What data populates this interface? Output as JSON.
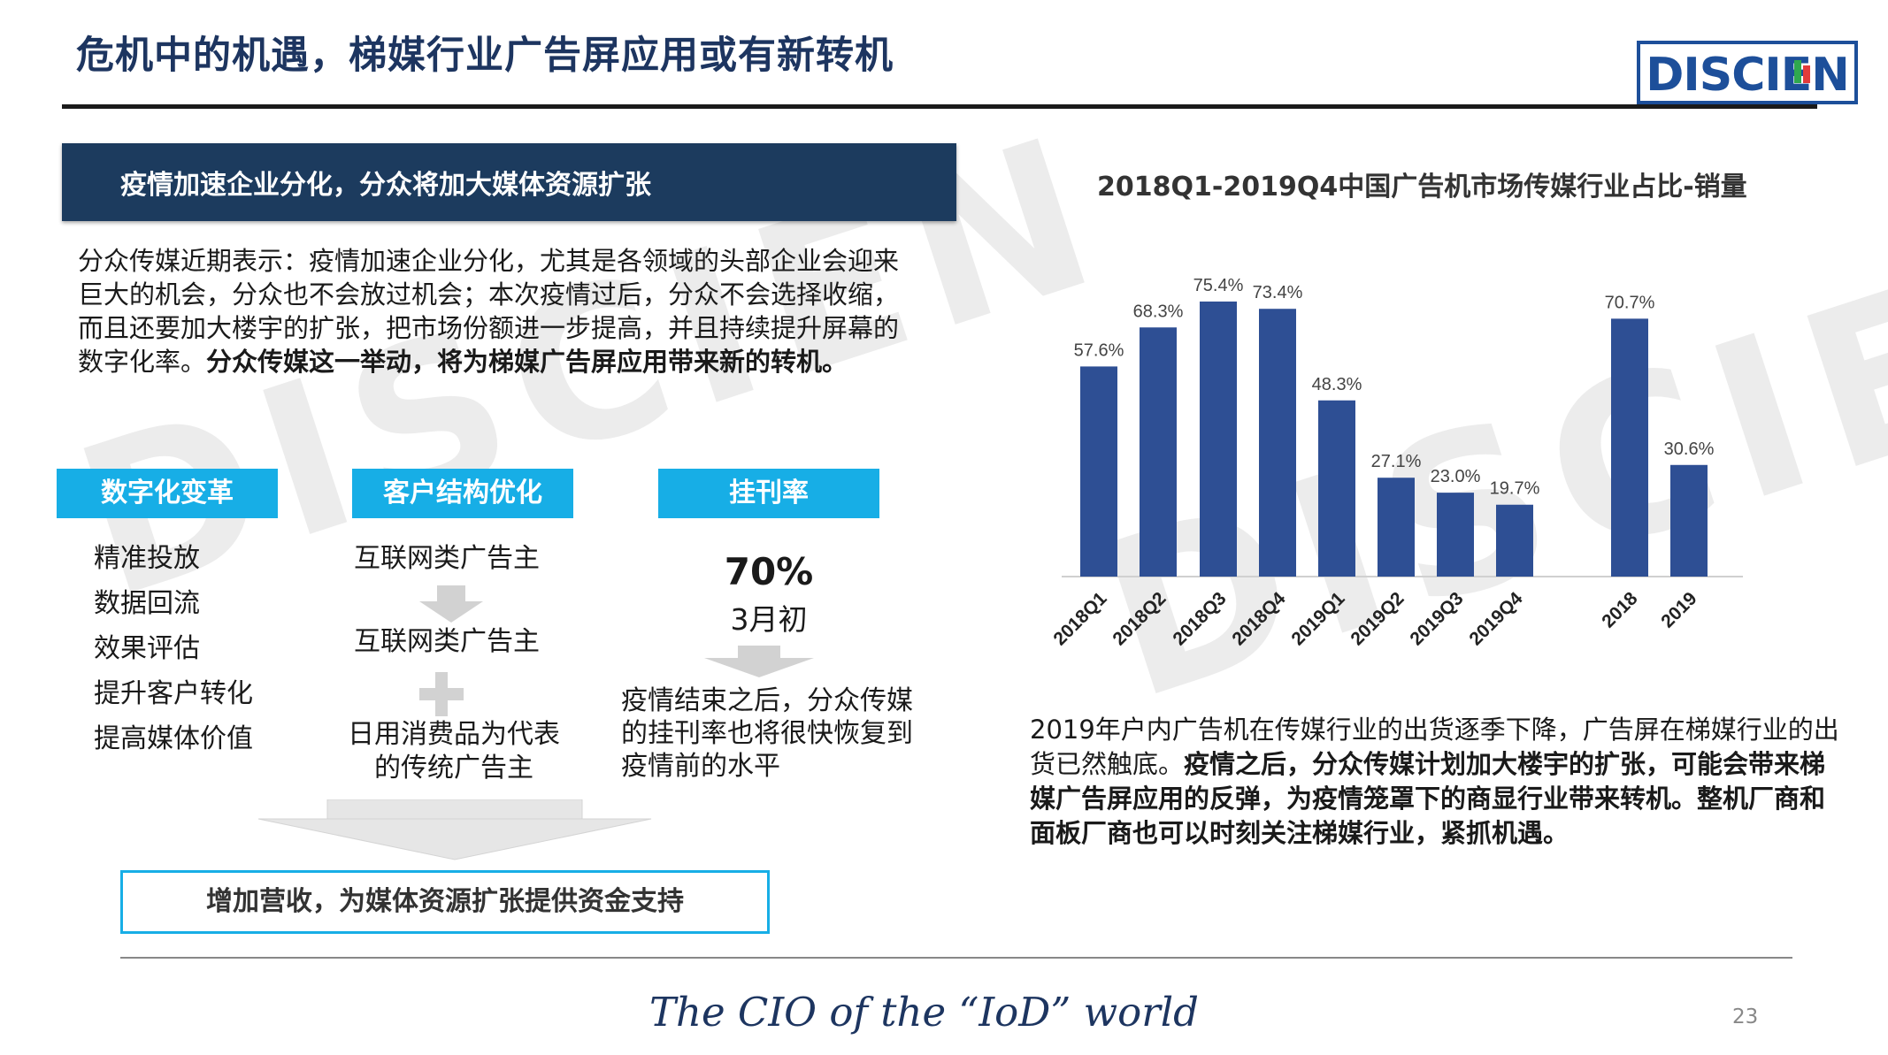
{
  "header": {
    "title": "危机中的机遇，梯媒行业广告屏应用或有新转机",
    "logo_text": "DISCIEN"
  },
  "left": {
    "banner": "疫情加速企业分化，分众将加大媒体资源扩张",
    "paragraph_normal": "分众传媒近期表示：疫情加速企业分化，尤其是各领域的头部企业会迎来巨大的机会，分众也不会放过机会；本次疫情过后，分众不会选择收缩，而且还要加大楼宇的扩张，把市场份额进一步提高，并且持续提升屏幕的数字化率。",
    "paragraph_bold": "分众传媒这一举动，将为梯媒广告屏应用带来新的转机。",
    "columns": [
      {
        "tag": "数字化变革",
        "items": [
          "精准投放",
          "数据回流",
          "效果评估",
          "提升客户转化",
          "提高媒体价值"
        ]
      },
      {
        "tag": "客户结构优化",
        "top": "互联网类广告主",
        "middle": "互联网类广告主",
        "bottom": "日用消费品为代表的传统广告主"
      },
      {
        "tag": "挂刊率",
        "value": "70%",
        "sub": "3月初",
        "note": "疫情结束之后，分众传媒的挂刊率也将很快恢复到疫情前的水平"
      }
    ],
    "conclusion": "增加营收，为媒体资源扩张提供资金支持"
  },
  "chart_data": {
    "type": "bar",
    "title": "2018Q1-2019Q4中国广告机市场传媒行业占比-销量",
    "categories": [
      "2018Q1",
      "2018Q2",
      "2018Q3",
      "2018Q4",
      "2019Q1",
      "2019Q2",
      "2019Q3",
      "2019Q4",
      "2018",
      "2019"
    ],
    "values": [
      57.6,
      68.3,
      75.4,
      73.4,
      48.3,
      27.1,
      23.0,
      19.7,
      70.7,
      30.6
    ],
    "labels": [
      "57.6%",
      "68.3%",
      "75.4%",
      "73.4%",
      "48.3%",
      "27.1%",
      "23.0%",
      "19.7%",
      "70.7%",
      "30.6%"
    ],
    "ylim": [
      0,
      80
    ],
    "color": "#2e4f94",
    "grid": false
  },
  "right": {
    "paragraph_normal": "2019年户内广告机在传媒行业的出货逐季下降，广告屏在梯媒行业的出货已然触底。",
    "paragraph_bold": "疫情之后，分众传媒计划加大楼宇的扩张，可能会带来梯媒广告屏应用的反弹，为疫情笼罩下的商显行业带来转机。整机厂商和面板厂商也可以时刻关注梯媒行业，紧抓机遇。"
  },
  "footer": {
    "slogan": "The CIO of the “IoD” world",
    "page": "23"
  }
}
